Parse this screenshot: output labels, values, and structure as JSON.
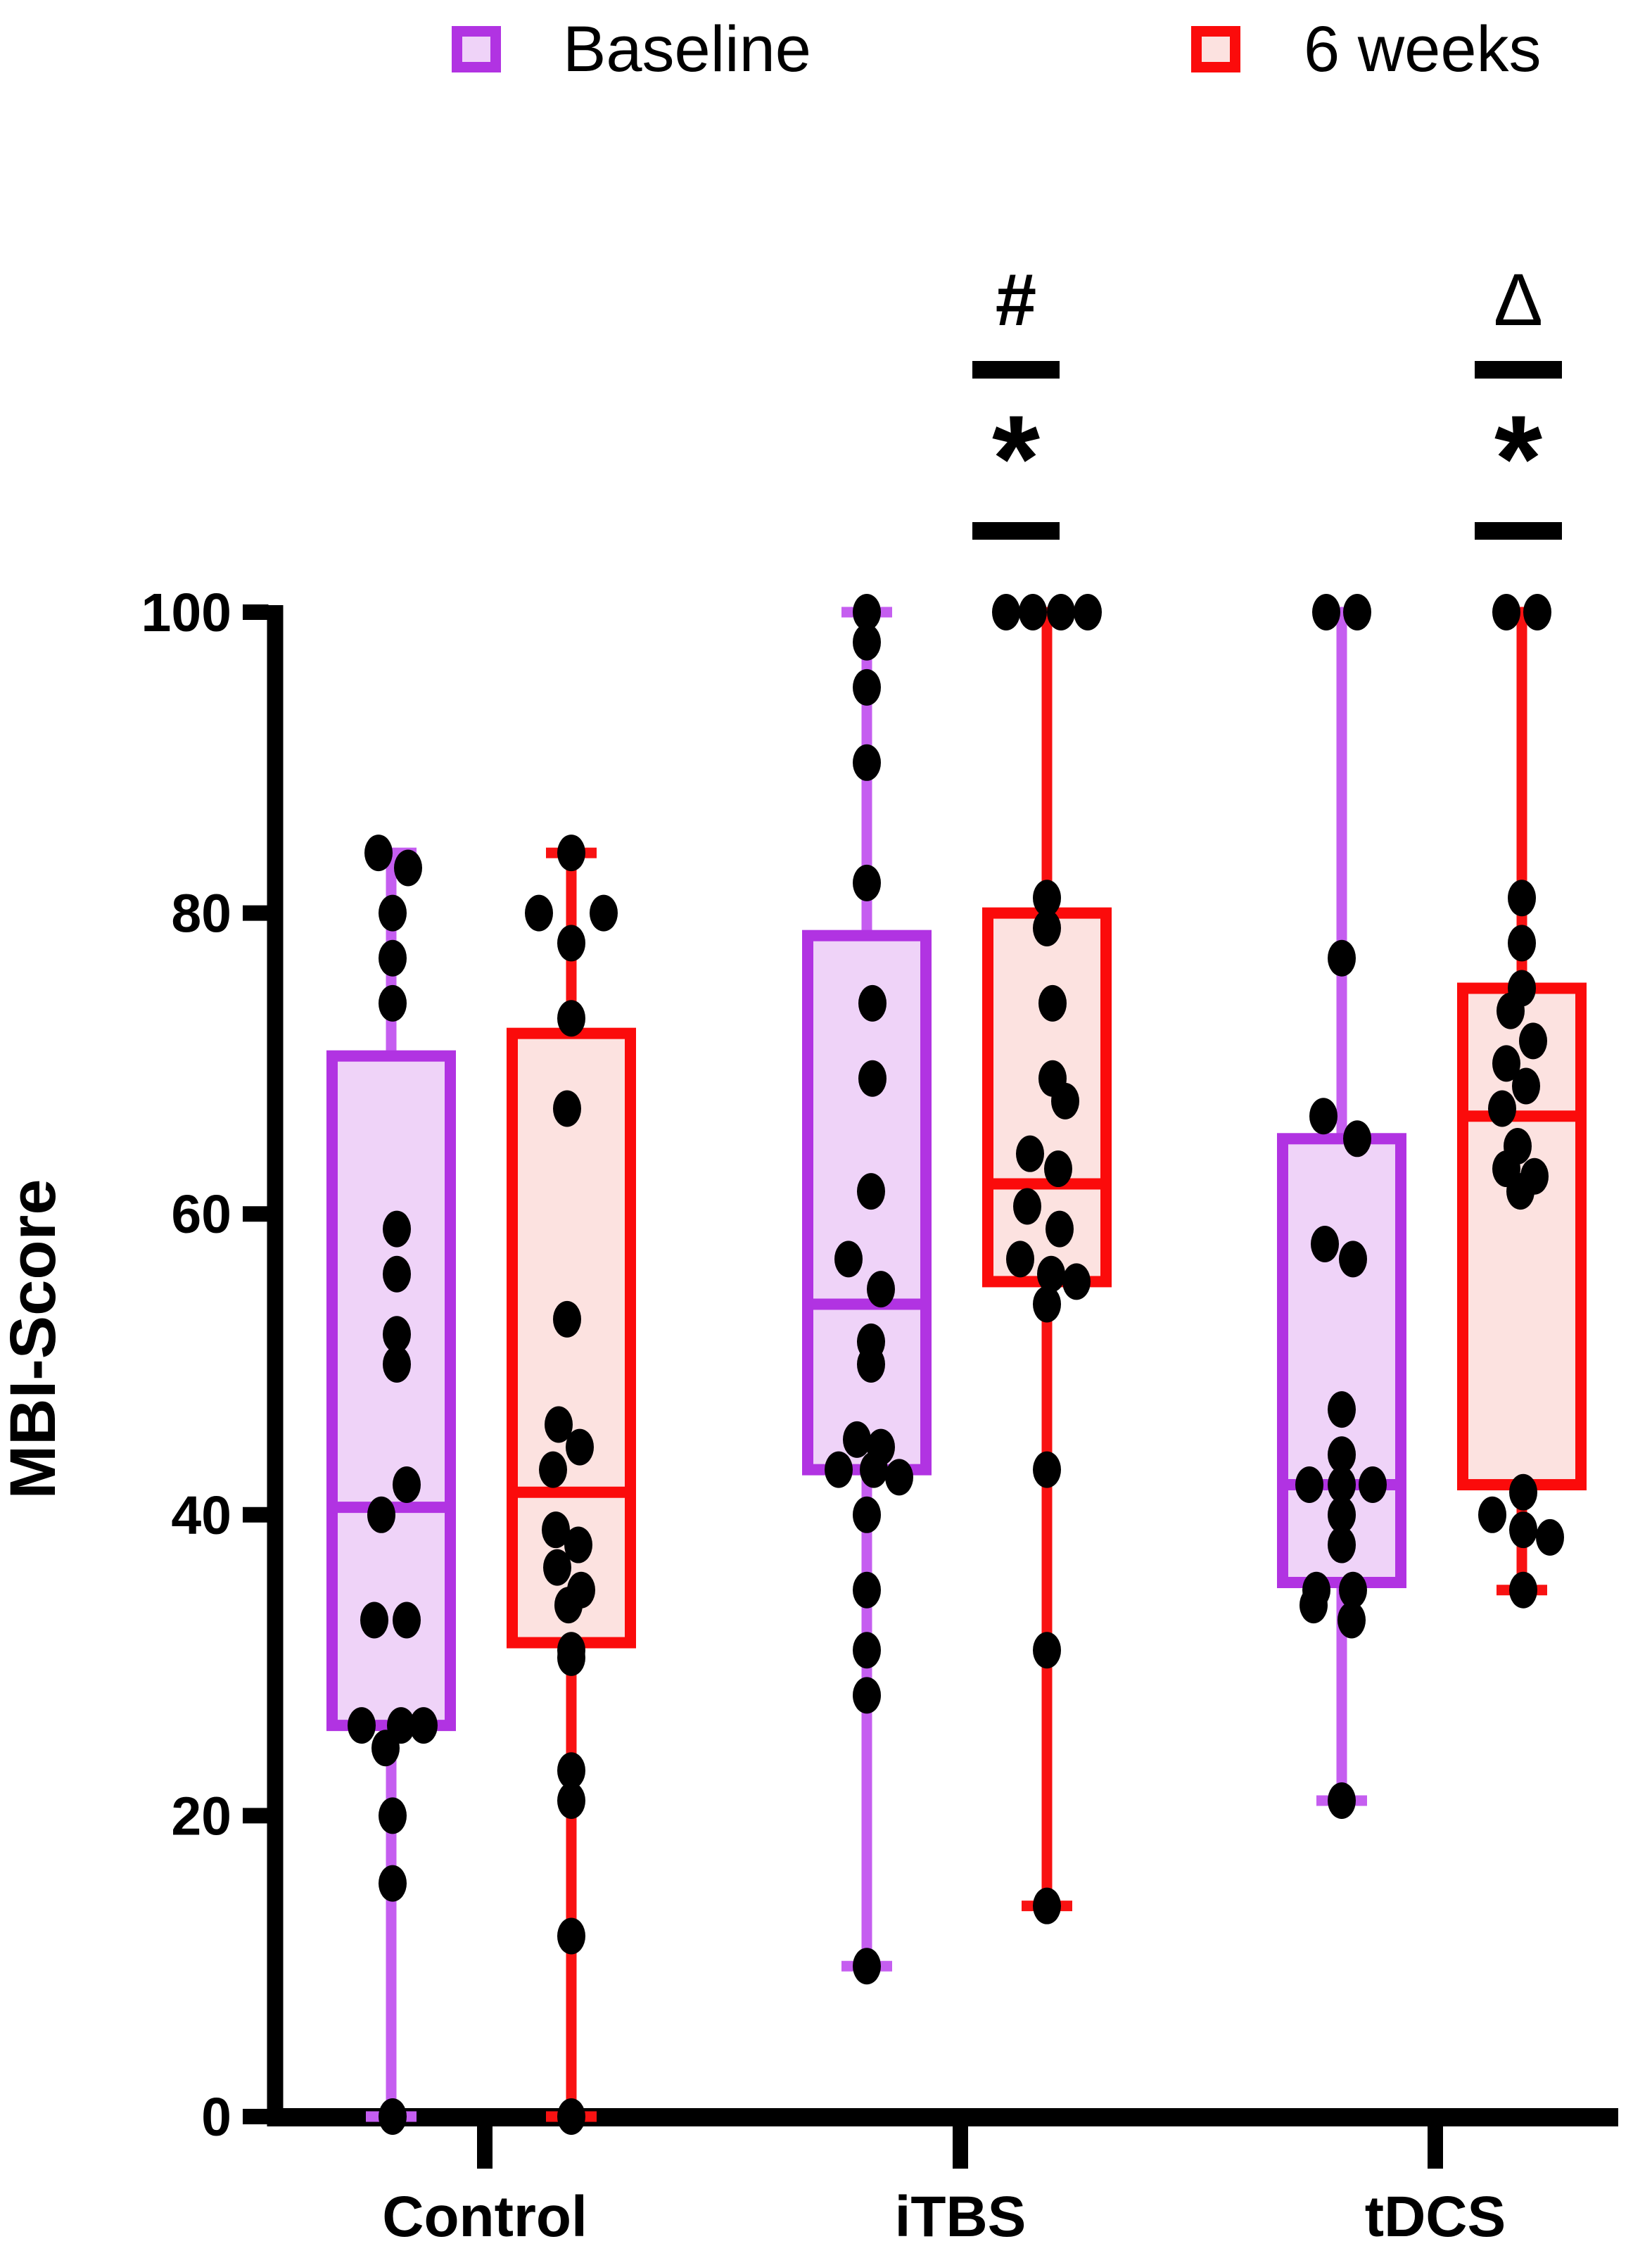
{
  "legend": {
    "items": [
      {
        "label": "Baseline",
        "stroke": "#b133e2",
        "fill": "#efd3f8"
      },
      {
        "label": "6 weeks",
        "stroke": "#fb0b0b",
        "fill": "#fce2e0"
      }
    ]
  },
  "chart_data": {
    "type": "box",
    "title": "",
    "xlabel": "",
    "ylabel": "MBI-Score",
    "ylim": [
      0,
      100
    ],
    "yticks": [
      0,
      20,
      40,
      60,
      80,
      100
    ],
    "grid": false,
    "legend_position": "top",
    "categories": [
      "Control",
      "iTBS",
      "tDCS"
    ],
    "series": [
      {
        "name": "Baseline",
        "stroke": "#b133e2",
        "whisker": "#c55ef0",
        "fill": "#efd3f8",
        "boxes": [
          {
            "category": "Control",
            "min": 0,
            "q1": 26,
            "median": 40.5,
            "q3": 70.5,
            "max": 84,
            "points": [
              [
                84,
                -18
              ],
              [
                83,
                24
              ],
              [
                80,
                2
              ],
              [
                77,
                2
              ],
              [
                74,
                2
              ],
              [
                59,
                8
              ],
              [
                56,
                8
              ],
              [
                52,
                8
              ],
              [
                50,
                8
              ],
              [
                42,
                22
              ],
              [
                40,
                -14
              ],
              [
                33,
                -24
              ],
              [
                33,
                22
              ],
              [
                26,
                -42
              ],
              [
                26,
                14
              ],
              [
                26,
                46
              ],
              [
                24.5,
                -8
              ],
              [
                20,
                2
              ],
              [
                15.5,
                2
              ],
              [
                0,
                2
              ]
            ]
          },
          {
            "category": "iTBS",
            "min": 10,
            "q1": 43,
            "median": 54,
            "q3": 78.5,
            "max": 100,
            "points": [
              [
                100,
                0
              ],
              [
                98,
                0
              ],
              [
                95,
                0
              ],
              [
                90,
                0
              ],
              [
                82,
                0
              ],
              [
                74,
                8
              ],
              [
                69,
                8
              ],
              [
                61.5,
                6
              ],
              [
                57,
                -26
              ],
              [
                55,
                20
              ],
              [
                51.5,
                6
              ],
              [
                50,
                6
              ],
              [
                45,
                -14
              ],
              [
                44.5,
                20
              ],
              [
                43,
                -40
              ],
              [
                43,
                10
              ],
              [
                42.5,
                46
              ],
              [
                40,
                0
              ],
              [
                35,
                0
              ],
              [
                31,
                0
              ],
              [
                28,
                0
              ],
              [
                10,
                0
              ]
            ]
          },
          {
            "category": "tDCS",
            "min": 21,
            "q1": 35.5,
            "median": 42,
            "q3": 65,
            "max": 100,
            "points": [
              [
                100,
                -22
              ],
              [
                100,
                22
              ],
              [
                77,
                0
              ],
              [
                66.5,
                -26
              ],
              [
                65,
                22
              ],
              [
                58,
                -24
              ],
              [
                57,
                16
              ],
              [
                47,
                0
              ],
              [
                44,
                0
              ],
              [
                42,
                -46
              ],
              [
                42,
                0
              ],
              [
                42,
                44
              ],
              [
                40,
                0
              ],
              [
                38,
                0
              ],
              [
                35,
                -36
              ],
              [
                35,
                16
              ],
              [
                34,
                -40
              ],
              [
                33,
                14
              ],
              [
                21,
                0
              ]
            ]
          }
        ]
      },
      {
        "name": "6 weeks",
        "stroke": "#fb0b0b",
        "whisker": "#f81212",
        "fill": "#fce2e0",
        "boxes": [
          {
            "category": "Control",
            "min": 0,
            "q1": 31.5,
            "median": 41.5,
            "q3": 72,
            "max": 84,
            "points": [
              [
                84,
                0
              ],
              [
                80,
                -46
              ],
              [
                80,
                46
              ],
              [
                78,
                0
              ],
              [
                73,
                0
              ],
              [
                67,
                -6
              ],
              [
                53,
                -6
              ],
              [
                46,
                -18
              ],
              [
                44.5,
                12
              ],
              [
                43,
                -26
              ],
              [
                39,
                -22
              ],
              [
                38,
                10
              ],
              [
                36.5,
                -20
              ],
              [
                35,
                14
              ],
              [
                34,
                -4
              ],
              [
                31,
                0
              ],
              [
                30.5,
                0
              ],
              [
                23,
                0
              ],
              [
                21,
                0
              ],
              [
                12,
                0
              ],
              [
                0,
                0
              ]
            ]
          },
          {
            "category": "iTBS",
            "min": 14,
            "q1": 55.5,
            "median": 62,
            "q3": 80,
            "max": 100,
            "points": [
              [
                100,
                -58
              ],
              [
                100,
                -20
              ],
              [
                100,
                20
              ],
              [
                100,
                58
              ],
              [
                81,
                0
              ],
              [
                79,
                0
              ],
              [
                74,
                8
              ],
              [
                69,
                8
              ],
              [
                67.5,
                26
              ],
              [
                64,
                -24
              ],
              [
                63,
                16
              ],
              [
                60.5,
                -28
              ],
              [
                59,
                18
              ],
              [
                57,
                -38
              ],
              [
                56,
                6
              ],
              [
                55.5,
                42
              ],
              [
                54,
                0
              ],
              [
                43,
                0
              ],
              [
                31,
                0
              ],
              [
                14,
                0
              ]
            ]
          },
          {
            "category": "tDCS",
            "min": 35,
            "q1": 42,
            "median": 66.5,
            "q3": 75,
            "max": 100,
            "points": [
              [
                100,
                -22
              ],
              [
                100,
                22
              ],
              [
                81,
                0
              ],
              [
                78,
                0
              ],
              [
                75,
                0
              ],
              [
                73.5,
                -16
              ],
              [
                71.5,
                16
              ],
              [
                70,
                -22
              ],
              [
                68.5,
                6
              ],
              [
                67,
                -28
              ],
              [
                64.5,
                -6
              ],
              [
                63,
                -22
              ],
              [
                62.5,
                18
              ],
              [
                61.5,
                -2
              ],
              [
                41.5,
                2
              ],
              [
                40,
                -42
              ],
              [
                39,
                2
              ],
              [
                38.5,
                40
              ],
              [
                35,
                2
              ]
            ]
          }
        ]
      }
    ],
    "annotations": [
      {
        "category": "iTBS",
        "top_symbol": "#",
        "bottom_symbol": "*"
      },
      {
        "category": "tDCS",
        "top_symbol": "Δ",
        "bottom_symbol": "*"
      }
    ]
  }
}
